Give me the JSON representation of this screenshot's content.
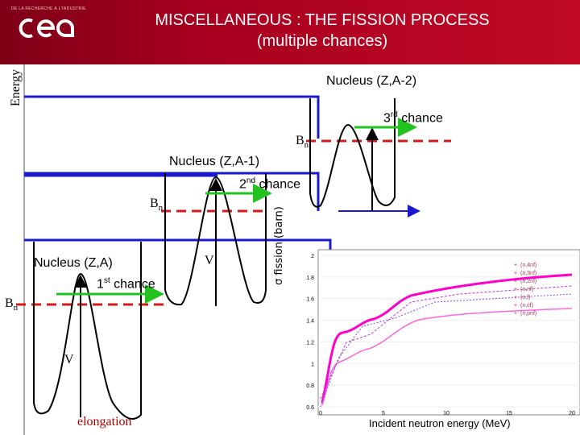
{
  "header": {
    "logo_text": "cea",
    "logo_tagline": "DE LA RECHERCHE À L'INDUSTRIE",
    "title_line1": "MISCELLANEOUS : THE FISSION PROCESS",
    "title_line2": "(multiple chances)"
  },
  "diagram": {
    "energy_axis": "Energy",
    "elongation_axis": "elongation",
    "nucleus_a2": "Nucleus (Z,A-2)",
    "nucleus_a1": "Nucleus (Z,A-1)",
    "nucleus_a": "Nucleus (Z,A)",
    "chance3_num": "3",
    "chance3_sup": "rd",
    "chance3_word": " chance",
    "chance2_num": "2",
    "chance2_sup": "nd",
    "chance2_word": " chance",
    "chance1_num": "1",
    "chance1_sup": "st",
    "chance1_word": " chance",
    "bn_label": "B",
    "bn_sub": "n",
    "v_label": "V",
    "colors": {
      "level_line": "#1a1acc",
      "chance_arrow": "#22c31e",
      "barrier": "#000000",
      "bn_line": "#d21a1a",
      "data_points": "#ff00cc"
    }
  },
  "inset_chart": {
    "ylabel_symbol": "σ",
    "ylabel_text": " fission (barn)",
    "xlabel": "Incident neutron energy (MeV)",
    "y_ticks": [
      "2",
      "1.8",
      "1.6",
      "1.4",
      "1.2",
      "1",
      "0.8",
      "0.6"
    ],
    "x_ticks": [
      "0",
      "5",
      "10",
      "15",
      "20"
    ],
    "legend": [
      "(n,4nf)",
      "(n,3nf)",
      "(n,2nf)",
      "(n,nf)",
      "(n,f)",
      "(n,cf)",
      "(n,pnf)"
    ]
  }
}
